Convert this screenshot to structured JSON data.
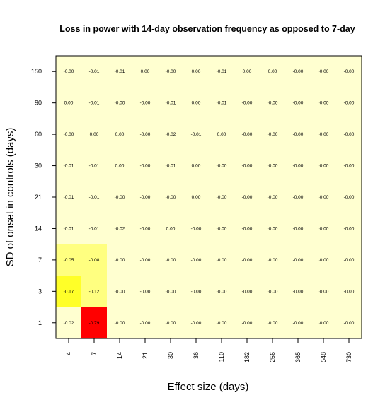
{
  "chart_data": {
    "type": "heatmap",
    "title": "Loss in power with 14-day observation frequency as opposed to 7-day",
    "xlabel": "Effect size (days)",
    "ylabel": "SD of onset in controls (days)",
    "x_categories": [
      "4",
      "7",
      "14",
      "21",
      "30",
      "36",
      "110",
      "182",
      "256",
      "365",
      "548",
      "730"
    ],
    "y_categories": [
      "150",
      "90",
      "60",
      "30",
      "21",
      "14",
      "7",
      "3",
      "1"
    ],
    "cell_labels": [
      [
        "-0.00",
        "-0.01",
        "-0.01",
        "0.00",
        "-0.00",
        "0.00",
        "-0.01",
        "0.00",
        "0.00",
        "-0.00",
        "-0.00",
        "-0.00"
      ],
      [
        "0.00",
        "-0.01",
        "-0.00",
        "-0.00",
        "-0.01",
        "0.00",
        "-0.01",
        "-0.00",
        "-0.00",
        "-0.00",
        "-0.00",
        "-0.00"
      ],
      [
        "-0.00",
        "0.00",
        "0.00",
        "-0.00",
        "-0.02",
        "-0.01",
        "0.00",
        "-0.00",
        "-0.00",
        "-0.00",
        "-0.00",
        "-0.00"
      ],
      [
        "-0.01",
        "-0.01",
        "0.00",
        "-0.00",
        "-0.01",
        "0.00",
        "-0.00",
        "-0.00",
        "-0.00",
        "-0.00",
        "-0.00",
        "-0.00"
      ],
      [
        "-0.01",
        "-0.01",
        "-0.00",
        "-0.00",
        "-0.00",
        "0.00",
        "-0.00",
        "-0.00",
        "-0.00",
        "-0.00",
        "-0.00",
        "-0.00"
      ],
      [
        "-0.01",
        "-0.01",
        "-0.02",
        "-0.00",
        "0.00",
        "-0.00",
        "-0.00",
        "-0.00",
        "-0.00",
        "-0.00",
        "-0.00",
        "-0.00"
      ],
      [
        "-0.05",
        "-0.08",
        "-0.00",
        "-0.00",
        "-0.00",
        "-0.00",
        "-0.00",
        "-0.00",
        "-0.00",
        "-0.00",
        "-0.00",
        "-0.00"
      ],
      [
        "-0.17",
        "-0.12",
        "-0.00",
        "-0.00",
        "-0.00",
        "-0.00",
        "-0.00",
        "-0.00",
        "-0.00",
        "-0.00",
        "-0.00",
        "-0.00"
      ],
      [
        "-0.02",
        "-0.79",
        "-0.00",
        "-0.00",
        "-0.00",
        "-0.00",
        "-0.00",
        "-0.00",
        "-0.00",
        "-0.00",
        "-0.00",
        "-0.00"
      ]
    ],
    "colors": {
      "base": "#ffffd0",
      "mid": "#ffff80",
      "high": "#ffff28",
      "max": "#ff0000"
    }
  }
}
